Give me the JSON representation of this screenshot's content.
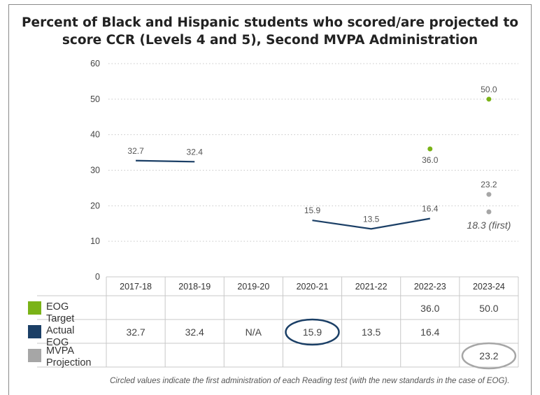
{
  "title_line1": "Percent of Black and Hispanic students who scored/are projected to",
  "title_line2": "score CCR (Levels 4 and 5), Second MVPA Administration",
  "footnote": "Circled values indicate the first administration of each Reading test (with the new standards in the case of EOG).",
  "colors": {
    "eog_target": "#7ab317",
    "actual_eog": "#1b3f66",
    "mvpa": "#a6a6a6"
  },
  "chart_data": {
    "type": "line",
    "title": "Percent of Black and Hispanic students who scored/are projected to score CCR (Levels 4 and 5), Second MVPA Administration",
    "ylim": [
      0,
      60
    ],
    "yticks": [
      0,
      10,
      20,
      30,
      40,
      50,
      60
    ],
    "grid": true,
    "categories": [
      "2017-18",
      "2018-19",
      "2019-20",
      "2020-21",
      "2021-22",
      "2022-23",
      "2023-24"
    ],
    "series": [
      {
        "name": "EOG Target",
        "style": "points",
        "color": "#7ab317",
        "values": [
          null,
          null,
          null,
          null,
          null,
          36.0,
          50.0
        ],
        "labels": [
          null,
          null,
          null,
          null,
          null,
          "36.0",
          "50.0"
        ]
      },
      {
        "name": "Actual EOG",
        "style": "line",
        "color": "#1b3f66",
        "values": [
          32.7,
          32.4,
          null,
          15.9,
          13.5,
          16.4,
          null
        ],
        "labels": [
          "32.7",
          "32.4",
          null,
          "15.9",
          "13.5",
          "16.4",
          null
        ]
      },
      {
        "name": "MVPA Projection",
        "style": "points",
        "color": "#a6a6a6",
        "values": [
          null,
          null,
          null,
          null,
          null,
          null,
          23.2
        ],
        "labels": [
          null,
          null,
          null,
          null,
          null,
          null,
          "23.2"
        ]
      }
    ],
    "annotations": [
      {
        "category": "2023-24",
        "value": 18.3,
        "text": "18.3 (first)",
        "color": "#a6a6a6"
      }
    ],
    "table": {
      "legend_position": "left of table",
      "rows": [
        {
          "name": "EOG Target",
          "legend_label": "EOG Target",
          "cells": [
            "",
            "",
            "",
            "",
            "",
            "36.0",
            "50.0"
          ]
        },
        {
          "name": "Actual EOG",
          "legend_label": "Actual EOG",
          "cells": [
            "32.7",
            "32.4",
            "N/A",
            "15.9",
            "13.5",
            "16.4",
            ""
          ]
        },
        {
          "name": "MVPA Projection",
          "legend_label": "MVPA\nProjection",
          "cells": [
            "",
            "",
            "",
            "",
            "",
            "",
            "23.2"
          ]
        }
      ],
      "circled": [
        {
          "row": 1,
          "col": 3,
          "color": "#1b3f66"
        },
        {
          "row": 2,
          "col": 6,
          "color": "#a6a6a6"
        }
      ]
    }
  }
}
